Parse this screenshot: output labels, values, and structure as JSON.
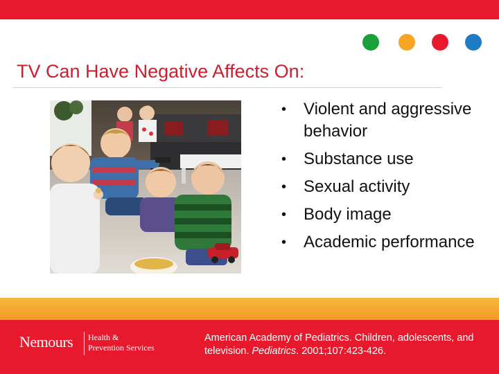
{
  "colors": {
    "top_bar": "#e8192c",
    "title": "#cc1f2e",
    "dots": [
      "#1aa03a",
      "#f6a623",
      "#e8192c",
      "#1d7cc2"
    ],
    "footer_orange": "#f29a22",
    "footer_red": "#e8192c"
  },
  "slide": {
    "title": "TV Can Have Negative Affects On:",
    "bullets": [
      "Violent and aggressive behavior",
      "Substance use",
      "Sexual activity",
      "Body image",
      "Academic performance"
    ],
    "bullet_glyph": "•"
  },
  "photo": {
    "icon": "children-watching-tv-photo"
  },
  "footer": {
    "logo": {
      "name": "Nemours",
      "line1": "Health &",
      "line2": "Prevention Services"
    },
    "citation": {
      "text1": "American Academy of Pediatrics. Children, adolescents, and television. ",
      "journal": "Pediatrics",
      "text2": ". 2001;107:423-426."
    }
  }
}
